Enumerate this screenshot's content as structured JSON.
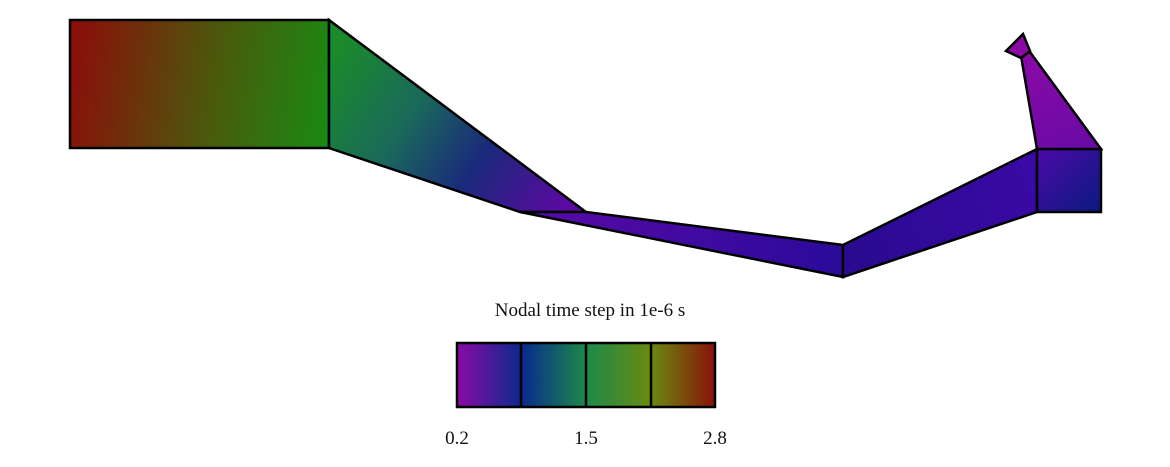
{
  "colorbar": {
    "title": "Nodal time step in 1e-6 s",
    "ticks": [
      "0.2",
      "1.5",
      "2.8"
    ],
    "range": [
      0.2,
      2.8
    ],
    "colors": {
      "low": "#8a0aa6",
      "mid_low": "#0a2a8c",
      "mid": "#1c8a2a",
      "mid_high": "#6a8a10",
      "high": "#8a0f0a"
    }
  },
  "colors": {
    "outline": "#000000",
    "background": "#ffffff"
  }
}
